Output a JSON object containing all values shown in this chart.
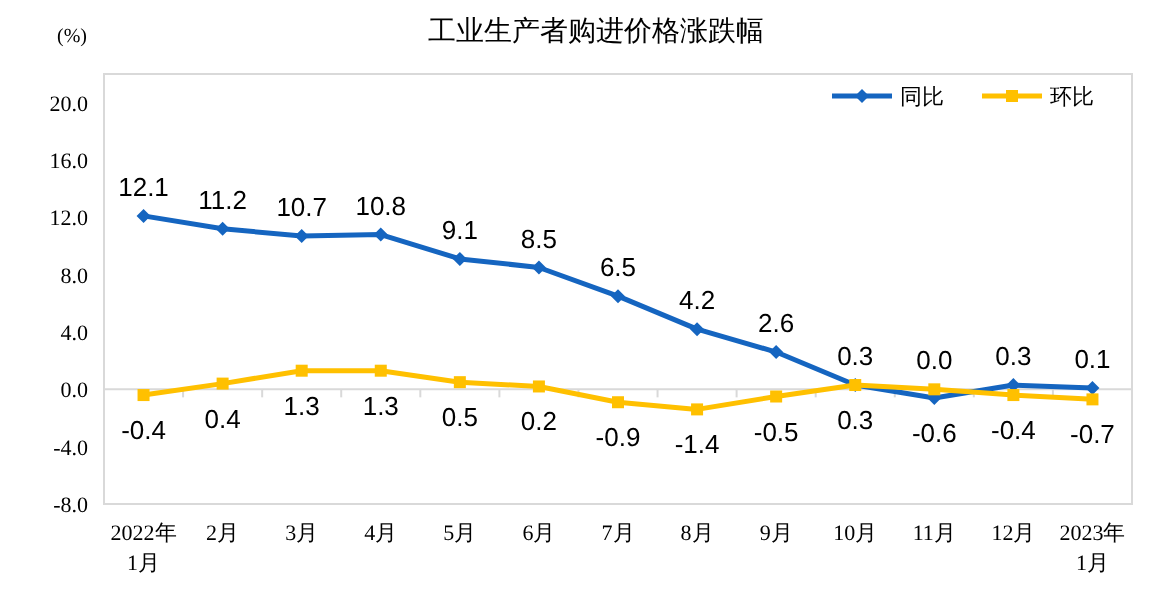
{
  "chart_data": {
    "type": "line",
    "title": "工业生产者购进价格涨跌幅",
    "ylabel": "(%)",
    "categories": [
      "2022年\n1月",
      "2月",
      "3月",
      "4月",
      "5月",
      "6月",
      "7月",
      "8月",
      "9月",
      "10月",
      "11月",
      "12月",
      "2023年\n1月"
    ],
    "series": [
      {
        "name": "同比",
        "color": "#1565c0",
        "marker": "diamond",
        "values": [
          12.1,
          11.2,
          10.7,
          10.8,
          9.1,
          8.5,
          6.5,
          4.2,
          2.6,
          0.3,
          -0.6,
          0.3,
          0.1
        ],
        "value_labels": [
          "12.1",
          "11.2",
          "10.7",
          "10.8",
          "9.1",
          "8.5",
          "6.5",
          "4.2",
          "2.6",
          "0.3",
          "-0.6",
          "0.3",
          "0.1"
        ]
      },
      {
        "name": "环比",
        "color": "#ffc000",
        "marker": "square",
        "values": [
          -0.4,
          0.4,
          1.3,
          1.3,
          0.5,
          0.2,
          -0.9,
          -1.4,
          -0.5,
          0.3,
          0.0,
          -0.4,
          -0.7
        ],
        "value_labels": [
          "-0.4",
          "0.4",
          "1.3",
          "1.3",
          "0.5",
          "0.2",
          "-0.9",
          "-1.4",
          "-0.5",
          "0.3",
          "0.0",
          "-0.4",
          "-0.7"
        ]
      }
    ],
    "ylim": [
      -8,
      22
    ],
    "ref_lines": [
      {
        "axis": "y",
        "value": 0,
        "color": "#d9d9d9"
      }
    ],
    "yticks": [
      {
        "value": -8,
        "label": "-8.0"
      },
      {
        "value": -4,
        "label": "-4.0"
      },
      {
        "value": 0,
        "label": "0.0"
      },
      {
        "value": 4,
        "label": "4.0"
      },
      {
        "value": 8,
        "label": "8.0"
      },
      {
        "value": 12,
        "label": "12.0"
      },
      {
        "value": 16,
        "label": "16.0"
      },
      {
        "value": 20,
        "label": "20.0"
      }
    ],
    "legend": "top right"
  }
}
